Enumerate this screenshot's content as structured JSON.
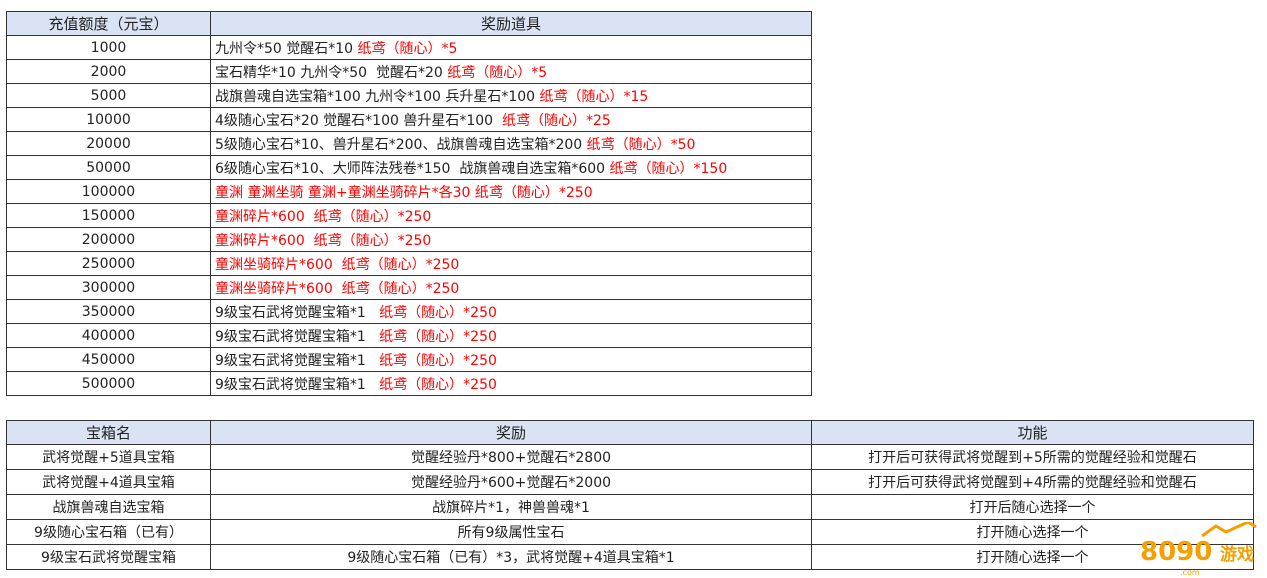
{
  "table1": {
    "headers": [
      "充值额度（元宝）",
      "奖励道具"
    ],
    "rows": [
      {
        "amount": "1000",
        "items": "九州令*50 觉醒石*10 ",
        "red": "纸鸢（随心）*5"
      },
      {
        "amount": "2000",
        "items": "宝石精华*10 九州令*50  觉醒石*20 ",
        "red": "纸鸢（随心）*5"
      },
      {
        "amount": "5000",
        "items": "战旗兽魂自选宝箱*100 九州令*100 兵升星石*100 ",
        "red": "纸鸢（随心）*15"
      },
      {
        "amount": "10000",
        "items": "4级随心宝石*20 觉醒石*100 兽升星石*100  ",
        "red": "纸鸢（随心）*25"
      },
      {
        "amount": "20000",
        "items": "5级随心宝石*10、兽升星石*200、战旗兽魂自选宝箱*200 ",
        "red": "纸鸢（随心）*50"
      },
      {
        "amount": "50000",
        "items": "6级随心宝石*10、大师阵法残卷*150  战旗兽魂自选宝箱*600 ",
        "red": "纸鸢（随心）*150"
      },
      {
        "amount": "100000",
        "items": "",
        "red": "童渊 童渊坐骑 童渊+童渊坐骑碎片*各30 纸鸢（随心）*250"
      },
      {
        "amount": "150000",
        "items": "",
        "red": "童渊碎片*600  纸鸢（随心）*250"
      },
      {
        "amount": "200000",
        "items": "",
        "red": "童渊碎片*600  纸鸢（随心）*250"
      },
      {
        "amount": "250000",
        "items": "",
        "red": "童渊坐骑碎片*600  纸鸢（随心）*250"
      },
      {
        "amount": "300000",
        "items": "",
        "red": "童渊坐骑碎片*600  纸鸢（随心）*250"
      },
      {
        "amount": "350000",
        "items": "9级宝石武将觉醒宝箱*1   ",
        "red": "纸鸢（随心）*250"
      },
      {
        "amount": "400000",
        "items": "9级宝石武将觉醒宝箱*1   ",
        "red": "纸鸢（随心）*250"
      },
      {
        "amount": "450000",
        "items": "9级宝石武将觉醒宝箱*1   ",
        "red": "纸鸢（随心）*250"
      },
      {
        "amount": "500000",
        "items": "9级宝石武将觉醒宝箱*1   ",
        "red": "纸鸢（随心）*250"
      }
    ]
  },
  "table2": {
    "headers": [
      "宝箱名",
      "奖励",
      "功能"
    ],
    "rows": [
      [
        "武将觉醒+5道具宝箱",
        "觉醒经验丹*800+觉醒石*2800",
        "打开后可获得武将觉醒到+5所需的觉醒经验和觉醒石"
      ],
      [
        "武将觉醒+4道具宝箱",
        "觉醒经验丹*600+觉醒石*2000",
        "打开后可获得武将觉醒到+4所需的觉醒经验和觉醒石"
      ],
      [
        "战旗兽魂自选宝箱",
        "战旗碎片*1，神兽兽魂*1",
        "打开后随心选择一个"
      ],
      [
        "9级随心宝石箱（已有）",
        "所有9级属性宝石",
        "打开随心选择一个"
      ],
      [
        "9级宝石武将觉醒宝箱",
        "9级随心宝石箱（已有）*3，武将觉醒+4道具宝箱*1",
        "打开随心选择一个"
      ]
    ]
  },
  "watermark": {
    "text": "8090游戏",
    "sub": ".com"
  },
  "colors": {
    "header_bg": "#dae3f3",
    "highlight": "#ff0000",
    "logo": "#f5a000"
  }
}
